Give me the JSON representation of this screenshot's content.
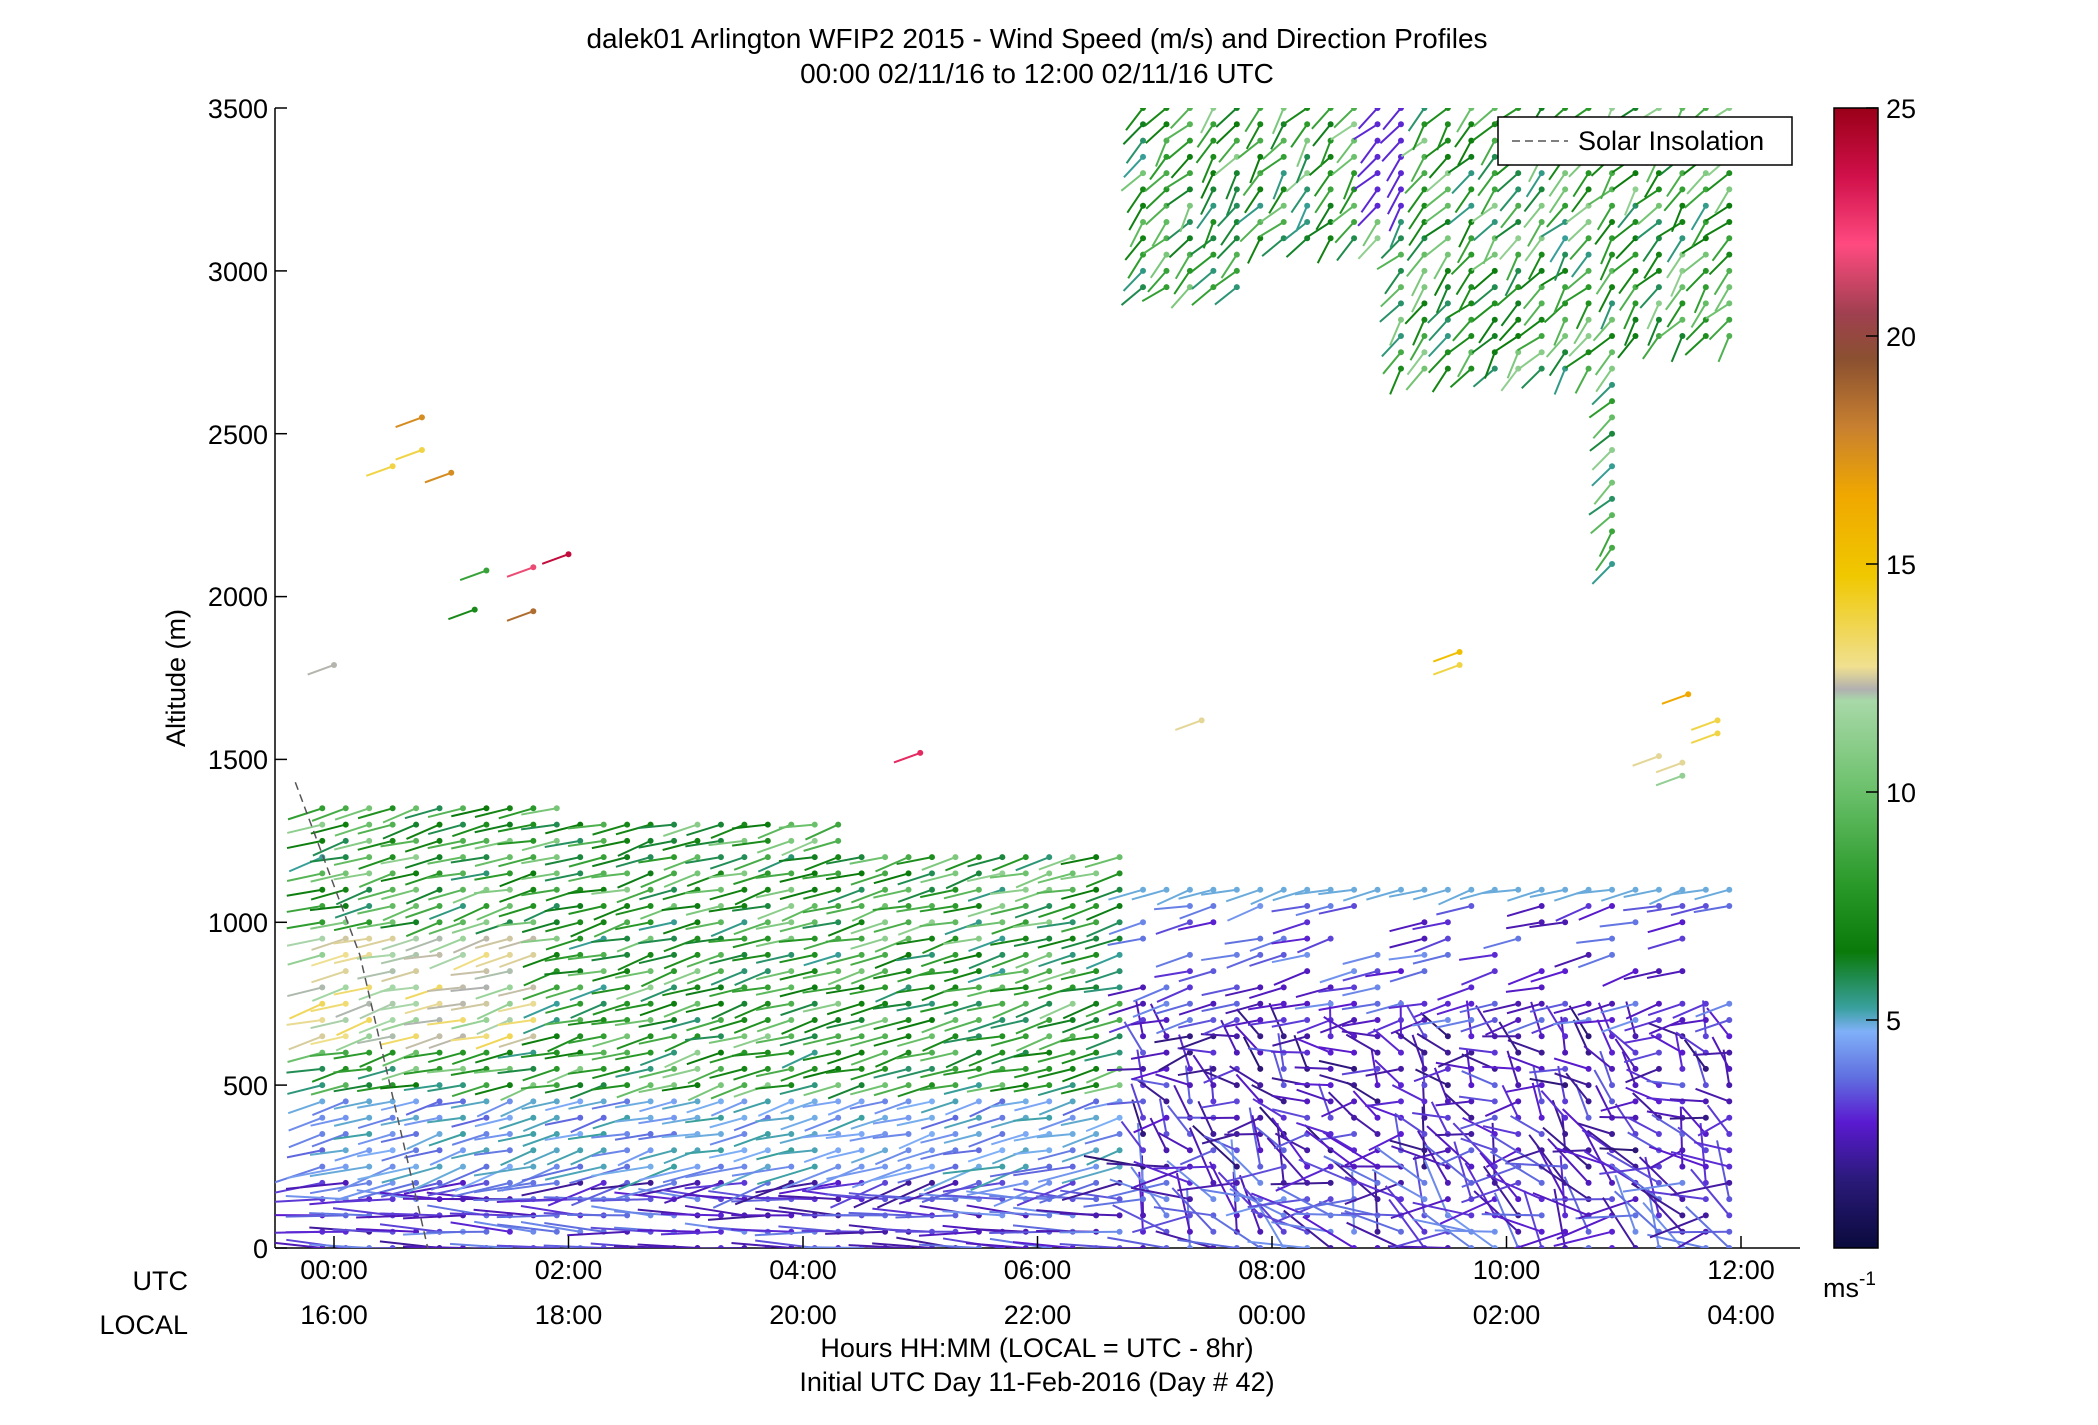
{
  "chart_data": {
    "type": "scatter",
    "title": "dalek01 Arlington WFIP2 2015 - Wind Speed (m/s) and Direction Profiles",
    "subtitle": "00:00 02/11/16 to 12:00 02/11/16  UTC",
    "ylabel": "Altitude (m)",
    "xlabel": "Hours HH:MM  (LOCAL = UTC - 8hr)",
    "xlabel2": "Initial UTC Day 11-Feb-2016 (Day # 42)",
    "utc_row_label": "UTC",
    "local_row_label": "LOCAL",
    "xlim_hours": [
      -0.33,
      12.4
    ],
    "ylim": [
      0,
      3500
    ],
    "y_ticks": [
      "0",
      "500",
      "1000",
      "1500",
      "2000",
      "2500",
      "3000",
      "3500"
    ],
    "x_ticks_utc": [
      "00:00",
      "02:00",
      "04:00",
      "06:00",
      "08:00",
      "10:00",
      "12:00"
    ],
    "x_ticks_local": [
      "16:00",
      "18:00",
      "20:00",
      "22:00",
      "00:00",
      "02:00",
      "04:00"
    ],
    "legend": {
      "label": "Solar Insolation",
      "position": "top-right",
      "style": "dashed gray"
    },
    "colorbar": {
      "range": [
        0,
        25
      ],
      "ticks": [
        "5",
        "10",
        "15",
        "20",
        "25"
      ],
      "unit_label": "ms",
      "unit_exponent": "-1",
      "colors": [
        "#0a0a3c",
        "#3a1a8c",
        "#5a1ad0",
        "#6070e0",
        "#80b0f8",
        "#3aa0a0",
        "#0a7a0a",
        "#2a9a2a",
        "#6ac06a",
        "#a8d8a8",
        "#b0b0b0",
        "#f0e090",
        "#f0c800",
        "#f0a800",
        "#c88030",
        "#8a5030",
        "#ff4a80",
        "#d0104a",
        "#9a0018"
      ]
    },
    "solar_insolation_line": [
      {
        "x_hours": -0.33,
        "y": 1430
      },
      {
        "x_hours": 0.22,
        "y": 900
      },
      {
        "x_hours": 0.8,
        "y": 0
      }
    ],
    "profile_groups": [
      {
        "name": "boundary_layer",
        "x_from": -0.1,
        "x_to": 12.0,
        "step": 0.2,
        "y_from": 0,
        "y_to": 1400,
        "y_step": 50
      },
      {
        "name": "upper_profiles",
        "x_from": 6.9,
        "x_to": 12.0,
        "step": 0.2,
        "y_from": 2050,
        "y_to": 3500,
        "y_step": 50
      },
      {
        "name": "isolated",
        "points": [
          {
            "x_hours": 0.75,
            "y": 2550,
            "speed": 19
          },
          {
            "x_hours": 0.75,
            "y": 2450,
            "speed": 16
          },
          {
            "x_hours": 0.5,
            "y": 2400,
            "speed": 16
          },
          {
            "x_hours": 1.0,
            "y": 2380,
            "speed": 19
          },
          {
            "x_hours": 1.3,
            "y": 2080,
            "speed": 10
          },
          {
            "x_hours": 1.7,
            "y": 2090,
            "speed": 22
          },
          {
            "x_hours": 2.0,
            "y": 2130,
            "speed": 24
          },
          {
            "x_hours": 1.2,
            "y": 1960,
            "speed": 9
          },
          {
            "x_hours": 1.7,
            "y": 1955,
            "speed": 20
          },
          {
            "x_hours": 0.0,
            "y": 1790,
            "speed": 14
          },
          {
            "x_hours": 5.0,
            "y": 1520,
            "speed": 23
          },
          {
            "x_hours": 7.4,
            "y": 1620,
            "speed": 15
          },
          {
            "x_hours": 9.6,
            "y": 1830,
            "speed": 17
          },
          {
            "x_hours": 9.6,
            "y": 1790,
            "speed": 16
          },
          {
            "x_hours": 11.55,
            "y": 1700,
            "speed": 18
          },
          {
            "x_hours": 11.8,
            "y": 1620,
            "speed": 16
          },
          {
            "x_hours": 11.8,
            "y": 1580,
            "speed": 16
          },
          {
            "x_hours": 11.3,
            "y": 1510,
            "speed": 15
          },
          {
            "x_hours": 11.5,
            "y": 1490,
            "speed": 15
          },
          {
            "x_hours": 11.5,
            "y": 1450,
            "speed": 12
          }
        ]
      }
    ]
  }
}
